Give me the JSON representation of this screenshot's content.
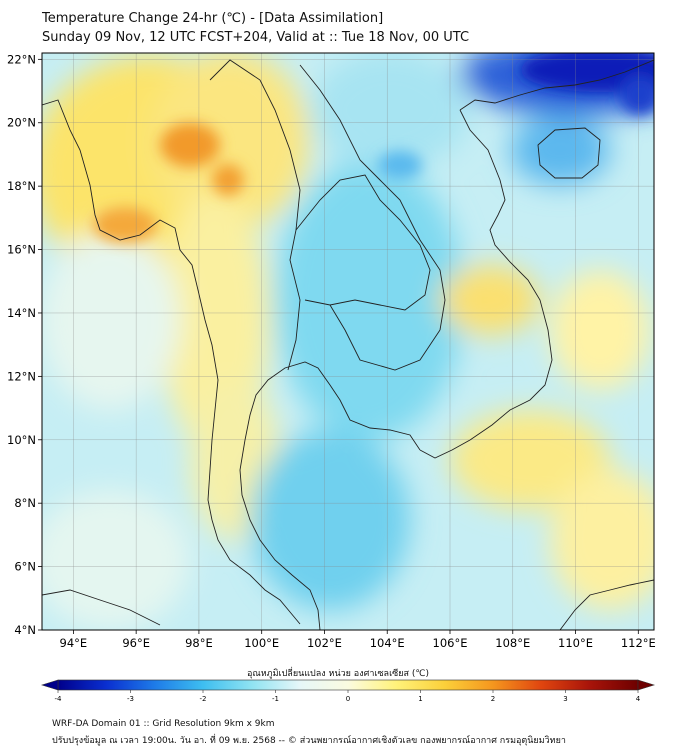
{
  "header": {
    "title_line1": "Temperature Change 24-hr (℃) - [Data Assimilation]",
    "title_line2": "Sunday 09 Nov, 12 UTC FCST+204, Valid at :: Tue 18 Nov, 00 UTC"
  },
  "map": {
    "lat_labels": [
      "22°N",
      "20°N",
      "18°N",
      "16°N",
      "14°N",
      "12°N",
      "10°N",
      "8°N",
      "6°N",
      "4°N"
    ],
    "lon_labels": [
      "94°E",
      "96°E",
      "98°E",
      "100°E",
      "102°E",
      "104°E",
      "106°E",
      "108°E",
      "110°E",
      "112°E"
    ],
    "lat_range": [
      4,
      22.2
    ],
    "lon_range": [
      93,
      112.5
    ]
  },
  "colorbar": {
    "label": "อุณหภูมิเปลี่ยนแปลง หน่วย องศาเซลเซียส (℃)",
    "ticks": [
      "-4",
      "-3",
      "-2",
      "-1",
      "0",
      "1",
      "2",
      "3",
      "4"
    ],
    "range": [
      -4,
      4
    ],
    "colors": [
      "#00008b",
      "#0a2fd0",
      "#1e7be8",
      "#3ebef0",
      "#8fe3f2",
      "#e6f7f8",
      "#fbfbe0",
      "#fff27a",
      "#fbd03a",
      "#f5961e",
      "#e0450f",
      "#a8140a",
      "#6e0000"
    ]
  },
  "footer": {
    "line1": "WRF-DA Domain 01 :: Grid Resolution 9km x 9km",
    "line2": "ปรับปรุงข้อมูล ณ เวลา 19:00น. วัน อา. ที่ 09 พ.ย. 2568 -- © ส่วนพยากรณ์อากาศเชิงตัวเลข กองพยากรณ์อากาศ กรมอุตุนิยมวิทยา"
  }
}
